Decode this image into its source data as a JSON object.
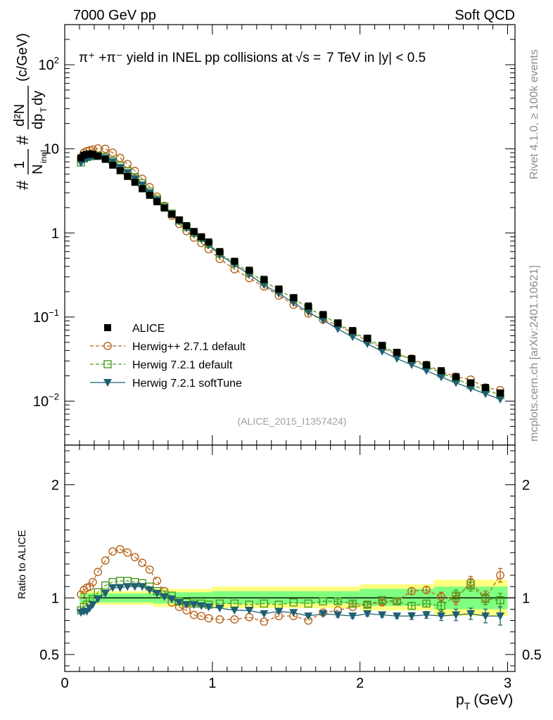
{
  "header": {
    "left": "7000 GeV pp",
    "right": "Soft QCD"
  },
  "side_labels": {
    "rivet": "Rivet 4.1.0, ≥ 100k events",
    "site": "mcplots.cern.ch [arXiv:2401.10621]"
  },
  "watermark": "(ALICE_2015_I1357424)",
  "colors": {
    "data": "#000000",
    "herwigpp": "#b8651b",
    "herwig721": "#4a9a1e",
    "softtune": "#1f5f73",
    "band_outer": "#ffff80",
    "band_inner": "#80ff80"
  },
  "chart_data": [
    {
      "type": "scatter",
      "title": "π⁺ +π⁻ yield in INEL pp collisions at √s = 7 TeV in |y| < 0.5",
      "title_parts": {
        "main": "π⁺ +π⁻ yield in INEL pp collisions at",
        "sqrt_s": "√s =",
        "rest": "7 TeV in |y| < 0.5"
      },
      "xlabel": "p_T (GeV)",
      "ylabel": "1/N_inel d²N/dp_T dy (c/GeV)",
      "ylabel_parts": {
        "hash1": "#",
        "hash2": "#",
        "one": "1",
        "n": "N",
        "inel": "inel",
        "dn": "d²N",
        "dp": "dp",
        "t": "T",
        "dy": "dy",
        "unit": "(c/GeV)"
      },
      "xlim": [
        0,
        3.05
      ],
      "ylim": [
        0.003,
        300
      ],
      "yscale": "log",
      "xticks": [
        0,
        1,
        2,
        3
      ],
      "xtick_labels": [
        "0",
        "1",
        "2",
        "3"
      ],
      "ytick_labels": [
        {
          "v": 100,
          "base": "10",
          "exp": "2"
        },
        {
          "v": 10,
          "base": "10",
          "exp": ""
        },
        {
          "v": 1,
          "base": "1",
          "exp": ""
        },
        {
          "v": 0.1,
          "base": "10",
          "exp": "−1"
        },
        {
          "v": 0.01,
          "base": "10",
          "exp": "−2"
        }
      ],
      "x": [
        0.11,
        0.13,
        0.15,
        0.17,
        0.19,
        0.225,
        0.275,
        0.325,
        0.375,
        0.425,
        0.475,
        0.525,
        0.575,
        0.625,
        0.675,
        0.725,
        0.775,
        0.825,
        0.875,
        0.925,
        0.975,
        1.05,
        1.15,
        1.25,
        1.35,
        1.45,
        1.55,
        1.65,
        1.75,
        1.85,
        1.95,
        2.05,
        2.15,
        2.25,
        2.35,
        2.45,
        2.55,
        2.65,
        2.75,
        2.85,
        2.95
      ],
      "series": [
        {
          "name": "ALICE",
          "marker": "square",
          "values": [
            7.8,
            8.4,
            8.6,
            8.7,
            8.6,
            8.2,
            7.5,
            6.4,
            5.5,
            4.7,
            4.0,
            3.35,
            2.8,
            2.35,
            1.98,
            1.67,
            1.43,
            1.22,
            1.04,
            0.9,
            0.78,
            0.6,
            0.46,
            0.36,
            0.28,
            0.215,
            0.17,
            0.135,
            0.107,
            0.085,
            0.069,
            0.056,
            0.046,
            0.038,
            0.032,
            0.027,
            0.023,
            0.0195,
            0.0165,
            0.0145,
            0.0125
          ],
          "errors": [
            0,
            0,
            0,
            0,
            0,
            0,
            0,
            0,
            0,
            0,
            0,
            0,
            0,
            0,
            0,
            0,
            0,
            0,
            0,
            0,
            0,
            0,
            0,
            0,
            0,
            0,
            0,
            0,
            0,
            0,
            0,
            0,
            0,
            0,
            0,
            0,
            0,
            0,
            0,
            0,
            0
          ]
        },
        {
          "name": "Herwig++ 2.7.1 default",
          "marker": "open-circle",
          "values": [
            7.9,
            9.0,
            9.4,
            9.6,
            9.8,
            10.1,
            10.0,
            9.0,
            7.8,
            6.6,
            5.45,
            4.4,
            3.5,
            2.7,
            2.1,
            1.6,
            1.28,
            1.05,
            0.88,
            0.76,
            0.64,
            0.49,
            0.37,
            0.29,
            0.23,
            0.18,
            0.14,
            0.11,
            0.093,
            0.08,
            0.064,
            0.052,
            0.043,
            0.036,
            0.032,
            0.027,
            0.0225,
            0.0195,
            0.018,
            0.0145,
            0.0135
          ],
          "errors": [
            0,
            0,
            0,
            0,
            0,
            0,
            0,
            0,
            0,
            0,
            0,
            0,
            0,
            0,
            0,
            0,
            0,
            0,
            0,
            0,
            0,
            0,
            0,
            0,
            0,
            0,
            0,
            0,
            0,
            0,
            0,
            0,
            0,
            0,
            0,
            0,
            0,
            0,
            0,
            0,
            0
          ]
        },
        {
          "name": "Herwig 7.2.1 default",
          "marker": "open-square",
          "values": [
            6.9,
            7.7,
            8.0,
            8.2,
            8.2,
            8.3,
            8.0,
            7.2,
            6.3,
            5.4,
            4.6,
            3.9,
            3.1,
            2.5,
            2.05,
            1.7,
            1.4,
            1.17,
            1.0,
            0.87,
            0.74,
            0.57,
            0.44,
            0.34,
            0.265,
            0.21,
            0.167,
            0.128,
            0.103,
            0.084,
            0.066,
            0.055,
            0.045,
            0.037,
            0.031,
            0.026,
            0.0215,
            0.0185,
            0.0155,
            0.0138,
            0.0118
          ],
          "errors": [
            0,
            0,
            0,
            0,
            0,
            0,
            0,
            0,
            0,
            0,
            0,
            0,
            0,
            0,
            0,
            0,
            0,
            0,
            0,
            0,
            0,
            0,
            0,
            0,
            0,
            0,
            0,
            0,
            0,
            0,
            0,
            0,
            0,
            0,
            0,
            0,
            0,
            0,
            0,
            0,
            0
          ]
        },
        {
          "name": "Herwig 7.2.1 softTune",
          "marker": "filled-triangle-down",
          "values": [
            6.8,
            7.4,
            7.6,
            7.9,
            8.1,
            8.1,
            7.8,
            7.0,
            6.0,
            5.2,
            4.4,
            3.7,
            3.0,
            2.45,
            2.0,
            1.65,
            1.38,
            1.15,
            0.98,
            0.84,
            0.72,
            0.55,
            0.42,
            0.32,
            0.24,
            0.19,
            0.148,
            0.114,
            0.092,
            0.072,
            0.058,
            0.048,
            0.039,
            0.032,
            0.027,
            0.023,
            0.0193,
            0.0165,
            0.0142,
            0.0122,
            0.0105
          ],
          "errors": [
            0,
            0,
            0,
            0,
            0,
            0,
            0,
            0,
            0,
            0,
            0,
            0,
            0,
            0,
            0,
            0,
            0,
            0,
            0,
            0,
            0,
            0,
            0,
            0,
            0,
            0,
            0,
            0,
            0,
            0,
            0,
            0,
            0,
            0,
            0,
            0,
            0,
            0,
            0,
            0,
            0
          ]
        }
      ]
    },
    {
      "type": "scatter",
      "title": "",
      "xlabel": "p_T (GeV)",
      "ylabel": "Ratio to ALICE",
      "xlim": [
        0,
        3.05
      ],
      "ylim": [
        0.35,
        2.35
      ],
      "xticks": [
        0,
        1,
        2,
        3
      ],
      "xtick_labels": [
        "0",
        "1",
        "2",
        "3"
      ],
      "yticks": [
        0.5,
        1,
        2
      ],
      "ytick_labels": [
        "0.5",
        "1",
        "2"
      ],
      "bands": [
        {
          "x0": 0.1,
          "x1": 0.6,
          "inner": [
            0.96,
            1.04
          ],
          "outer": [
            0.94,
            1.06
          ]
        },
        {
          "x0": 0.6,
          "x1": 1.0,
          "inner": [
            0.95,
            1.05
          ],
          "outer": [
            0.92,
            1.08
          ]
        },
        {
          "x0": 1.0,
          "x1": 2.0,
          "inner": [
            0.95,
            1.06
          ],
          "outer": [
            0.91,
            1.1
          ]
        },
        {
          "x0": 2.0,
          "x1": 2.5,
          "inner": [
            0.93,
            1.08
          ],
          "outer": [
            0.89,
            1.12
          ]
        },
        {
          "x0": 2.5,
          "x1": 3.0,
          "inner": [
            0.9,
            1.1
          ],
          "outer": [
            0.84,
            1.16
          ]
        }
      ],
      "x": [
        0.11,
        0.13,
        0.15,
        0.17,
        0.19,
        0.225,
        0.275,
        0.325,
        0.375,
        0.425,
        0.475,
        0.525,
        0.575,
        0.625,
        0.675,
        0.725,
        0.775,
        0.825,
        0.875,
        0.925,
        0.975,
        1.05,
        1.15,
        1.25,
        1.35,
        1.45,
        1.55,
        1.65,
        1.75,
        1.85,
        1.95,
        2.05,
        2.15,
        2.25,
        2.35,
        2.45,
        2.55,
        2.65,
        2.75,
        2.85,
        2.95
      ],
      "series": [
        {
          "name": "Herwig++ 2.7.1 default",
          "marker": "open-circle",
          "values": [
            1.03,
            1.07,
            1.09,
            1.1,
            1.14,
            1.23,
            1.33,
            1.41,
            1.43,
            1.4,
            1.36,
            1.31,
            1.25,
            1.15,
            1.06,
            0.96,
            0.92,
            0.89,
            0.85,
            0.84,
            0.82,
            0.81,
            0.81,
            0.83,
            0.79,
            0.84,
            0.84,
            0.8,
            0.87,
            0.89,
            0.92,
            0.94,
            0.96,
            0.97,
            1.06,
            1.07,
            1.01,
            0.99,
            1.14,
            1.0,
            1.2
          ],
          "errors": [
            0.01,
            0.01,
            0.01,
            0.01,
            0.01,
            0.01,
            0.01,
            0.01,
            0.01,
            0.01,
            0.01,
            0.01,
            0.01,
            0.01,
            0.01,
            0.01,
            0.01,
            0.01,
            0.01,
            0.01,
            0.01,
            0.01,
            0.01,
            0.01,
            0.01,
            0.01,
            0.01,
            0.01,
            0.01,
            0.01,
            0.01,
            0.02,
            0.02,
            0.02,
            0.03,
            0.03,
            0.04,
            0.05,
            0.05,
            0.06,
            0.06
          ]
        },
        {
          "name": "Herwig 7.2.1 default",
          "marker": "open-square",
          "values": [
            0.89,
            0.92,
            0.94,
            0.97,
            0.99,
            1.05,
            1.11,
            1.14,
            1.15,
            1.15,
            1.14,
            1.13,
            1.1,
            1.06,
            1.03,
            1.02,
            0.97,
            0.96,
            0.95,
            0.95,
            0.94,
            0.95,
            0.95,
            0.94,
            0.95,
            0.94,
            0.96,
            0.95,
            0.97,
            0.97,
            0.95,
            0.94,
            0.98,
            0.97,
            0.93,
            0.95,
            0.93,
            1.02,
            1.11,
            0.99,
            0.98
          ],
          "errors": [
            0.01,
            0.01,
            0.01,
            0.01,
            0.01,
            0.01,
            0.01,
            0.01,
            0.01,
            0.01,
            0.01,
            0.01,
            0.01,
            0.01,
            0.01,
            0.01,
            0.01,
            0.01,
            0.01,
            0.01,
            0.01,
            0.01,
            0.01,
            0.01,
            0.01,
            0.01,
            0.01,
            0.01,
            0.01,
            0.02,
            0.02,
            0.02,
            0.02,
            0.02,
            0.03,
            0.03,
            0.04,
            0.05,
            0.05,
            0.05,
            0.06
          ]
        },
        {
          "name": "Herwig 7.2.1 softTune",
          "marker": "filled-triangle-down",
          "values": [
            0.87,
            0.88,
            0.88,
            0.91,
            0.94,
            0.99,
            1.04,
            1.09,
            1.09,
            1.1,
            1.1,
            1.1,
            1.07,
            1.04,
            1.01,
            0.99,
            0.96,
            0.94,
            0.94,
            0.93,
            0.92,
            0.91,
            0.89,
            0.89,
            0.86,
            0.88,
            0.87,
            0.84,
            0.86,
            0.85,
            0.84,
            0.86,
            0.85,
            0.84,
            0.84,
            0.85,
            0.84,
            0.85,
            0.86,
            0.84,
            0.84
          ],
          "errors": [
            0.01,
            0.01,
            0.01,
            0.01,
            0.01,
            0.01,
            0.01,
            0.01,
            0.01,
            0.01,
            0.01,
            0.01,
            0.01,
            0.01,
            0.01,
            0.01,
            0.01,
            0.01,
            0.01,
            0.01,
            0.01,
            0.01,
            0.01,
            0.01,
            0.01,
            0.01,
            0.01,
            0.01,
            0.01,
            0.02,
            0.02,
            0.02,
            0.02,
            0.02,
            0.03,
            0.03,
            0.04,
            0.05,
            0.05,
            0.06,
            0.08
          ]
        }
      ]
    }
  ]
}
